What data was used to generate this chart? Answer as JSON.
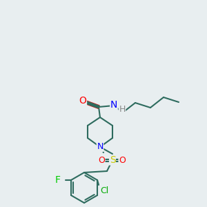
{
  "background_color": "#e8eef0",
  "bond_color": "#2d6b5e",
  "bond_width": 1.5,
  "atom_colors": {
    "O": "#ff0000",
    "N": "#0000ff",
    "S": "#cccc00",
    "F": "#00cc00",
    "Cl": "#00aa00",
    "H": "#888888",
    "C": "#2d6b5e"
  },
  "font_size": 9
}
